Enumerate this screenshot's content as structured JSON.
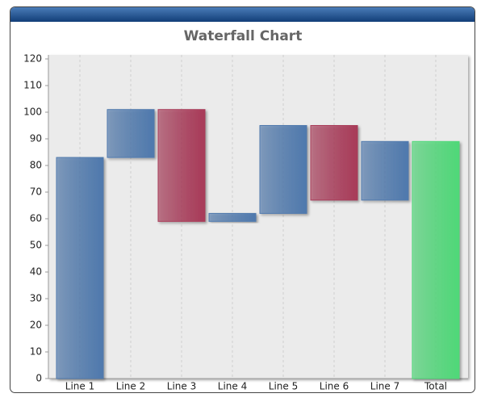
{
  "chart_data": {
    "type": "waterfall",
    "title": "Waterfall Chart",
    "categories": [
      "Line 1",
      "Line 2",
      "Line 3",
      "Line 4",
      "Line 5",
      "Line 6",
      "Line 7",
      "Total"
    ],
    "values": [
      83,
      18,
      -42,
      3,
      33,
      -28,
      22,
      89
    ],
    "colors": {
      "increase": "#4f79ad",
      "decrease": "#a83a58",
      "total": "#4fd878"
    },
    "ylim": [
      0,
      120
    ],
    "yticks": [
      0,
      10,
      20,
      30,
      40,
      50,
      60,
      70,
      80,
      90,
      100,
      110,
      120
    ],
    "grid": true
  }
}
